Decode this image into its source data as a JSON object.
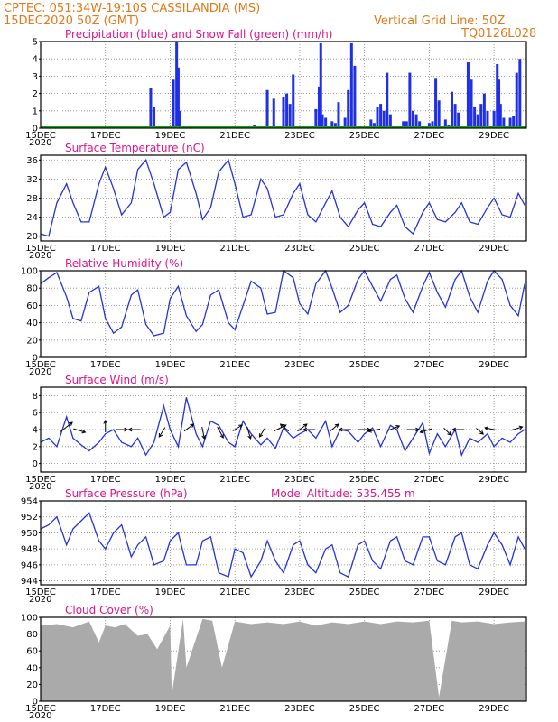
{
  "header": {
    "station": "CPTEC:   051:34W-19:10S   CASSILANDIA (MS)",
    "run": "15DEC2020 50Z (GMT)",
    "grid_note": "Vertical Grid Line: 50Z",
    "model_id": "TQ0126L028"
  },
  "x_labels": [
    "15DEC",
    "17DEC",
    "19DEC",
    "21DEC",
    "23DEC",
    "25DEC",
    "27DEC",
    "29DEC"
  ],
  "year_label": "2020",
  "colors": {
    "precip": "#1f2fe8",
    "snow": "#12a012",
    "line": "#2233dd",
    "cloud": "#aaaaaa",
    "grid": "#888888",
    "title": "#e0158a",
    "header": "#e07a1a"
  },
  "chart_data": [
    {
      "type": "bar",
      "title": "Precipitation (blue) and Snow Fall (green) (mm/h)",
      "ylim": [
        0,
        5
      ],
      "yticks": [
        0,
        1,
        2,
        3,
        4,
        5
      ],
      "x_days": [
        3.4,
        3.5,
        4.1,
        4.2,
        4.25,
        4.3,
        6.6,
        7.0,
        7.2,
        7.5,
        7.6,
        7.7,
        7.8,
        8.5,
        8.6,
        8.65,
        8.7,
        8.8,
        9.0,
        9.1,
        9.2,
        9.4,
        9.5,
        9.6,
        9.7,
        10.2,
        10.3,
        10.4,
        10.5,
        10.6,
        10.7,
        10.8,
        11.2,
        11.3,
        11.4,
        11.5,
        11.6,
        11.7,
        12.0,
        12.1,
        12.2,
        12.3,
        12.5,
        12.6,
        12.7,
        12.8,
        12.9,
        13.2,
        13.3,
        13.4,
        13.5,
        13.6,
        13.7,
        13.8,
        14.0,
        14.1,
        14.15,
        14.2,
        14.3,
        14.5,
        14.6,
        14.7,
        14.8
      ],
      "values": [
        2.3,
        1.2,
        2.8,
        5.0,
        3.5,
        1.0,
        0.2,
        2.2,
        1.7,
        1.8,
        2.0,
        1.4,
        3.1,
        1.1,
        2.4,
        4.9,
        0.8,
        0.6,
        0.4,
        0.3,
        1.5,
        0.6,
        2.2,
        4.9,
        3.6,
        0.5,
        0.3,
        1.2,
        1.4,
        1.0,
        3.2,
        0.8,
        0.4,
        0.4,
        3.2,
        1.0,
        0.8,
        0.4,
        0.3,
        0.4,
        2.9,
        1.6,
        0.5,
        0.2,
        2.1,
        1.4,
        0.9,
        3.8,
        2.8,
        1.2,
        0.8,
        1.4,
        2.0,
        1.0,
        1.0,
        3.7,
        2.8,
        1.4,
        0.6,
        0.6,
        0.7,
        3.2,
        4.0
      ]
    },
    {
      "type": "line",
      "title": "Surface Temperature (nC)",
      "ylim": [
        19,
        37
      ],
      "yticks": [
        20,
        24,
        28,
        32,
        36
      ],
      "x_days": [
        0.0,
        0.25,
        0.5,
        0.8,
        1.0,
        1.25,
        1.5,
        1.8,
        2.0,
        2.25,
        2.5,
        2.8,
        3.0,
        3.25,
        3.5,
        3.8,
        4.0,
        4.25,
        4.5,
        4.8,
        5.0,
        5.25,
        5.5,
        5.8,
        6.0,
        6.25,
        6.5,
        6.8,
        7.0,
        7.25,
        7.5,
        7.8,
        8.0,
        8.25,
        8.5,
        8.8,
        9.0,
        9.25,
        9.5,
        9.8,
        10.0,
        10.25,
        10.5,
        10.8,
        11.0,
        11.25,
        11.5,
        11.8,
        12.0,
        12.25,
        12.5,
        12.8,
        13.0,
        13.25,
        13.5,
        13.8,
        14.0,
        14.25,
        14.5,
        14.75,
        14.95
      ],
      "values": [
        20.5,
        20,
        27,
        31,
        27,
        23,
        23,
        31,
        34.5,
        30,
        24.5,
        27,
        34,
        36,
        31,
        24,
        25,
        34,
        35.5,
        29,
        23.5,
        26,
        33.5,
        36,
        31,
        24,
        24.5,
        32,
        30,
        24,
        24.5,
        29,
        31,
        24.5,
        23,
        27,
        29.5,
        24,
        22,
        25.5,
        27,
        22.5,
        22,
        25,
        26.5,
        22,
        20.5,
        25,
        27,
        23.5,
        23,
        25,
        27,
        23,
        22.5,
        26,
        28,
        24.5,
        24,
        29,
        26.5
      ]
    },
    {
      "type": "line",
      "title": "Relative Humidity (%)",
      "ylim": [
        0,
        100
      ],
      "yticks": [
        0,
        20,
        40,
        60,
        80,
        100
      ],
      "x_days": [
        0.0,
        0.25,
        0.5,
        0.8,
        1.0,
        1.25,
        1.5,
        1.8,
        2.0,
        2.25,
        2.5,
        2.8,
        3.0,
        3.25,
        3.5,
        3.8,
        4.0,
        4.25,
        4.5,
        4.8,
        5.0,
        5.25,
        5.5,
        5.8,
        6.0,
        6.25,
        6.5,
        6.8,
        7.0,
        7.25,
        7.5,
        7.8,
        8.0,
        8.25,
        8.5,
        8.8,
        9.0,
        9.25,
        9.5,
        9.8,
        10.0,
        10.25,
        10.5,
        10.8,
        11.0,
        11.25,
        11.5,
        11.8,
        12.0,
        12.25,
        12.5,
        12.8,
        13.0,
        13.25,
        13.5,
        13.8,
        14.0,
        14.25,
        14.5,
        14.75,
        14.95
      ],
      "values": [
        85,
        92,
        98,
        70,
        45,
        42,
        75,
        82,
        45,
        28,
        35,
        72,
        78,
        38,
        25,
        28,
        68,
        82,
        48,
        30,
        38,
        72,
        78,
        40,
        32,
        60,
        88,
        80,
        50,
        52,
        100,
        92,
        62,
        50,
        85,
        100,
        80,
        52,
        60,
        90,
        100,
        82,
        65,
        90,
        95,
        68,
        52,
        82,
        98,
        75,
        58,
        90,
        100,
        70,
        52,
        88,
        100,
        90,
        60,
        48,
        85
      ]
    },
    {
      "type": "line",
      "title": "Surface Wind (m/s)",
      "ylim": [
        -1,
        9
      ],
      "yticks": [
        0,
        2,
        4,
        6,
        8
      ],
      "x_days": [
        0.0,
        0.25,
        0.5,
        0.8,
        1.0,
        1.25,
        1.5,
        1.8,
        2.0,
        2.25,
        2.5,
        2.8,
        3.0,
        3.25,
        3.5,
        3.8,
        4.0,
        4.25,
        4.5,
        4.8,
        5.0,
        5.25,
        5.5,
        5.8,
        6.0,
        6.25,
        6.5,
        6.8,
        7.0,
        7.25,
        7.5,
        7.8,
        8.0,
        8.25,
        8.5,
        8.8,
        9.0,
        9.25,
        9.5,
        9.8,
        10.0,
        10.25,
        10.5,
        10.8,
        11.0,
        11.25,
        11.5,
        11.8,
        12.0,
        12.25,
        12.5,
        12.8,
        13.0,
        13.25,
        13.5,
        13.8,
        14.0,
        14.25,
        14.5,
        14.75,
        14.95
      ],
      "values": [
        2.5,
        3.0,
        2.0,
        5.5,
        3.0,
        2.2,
        1.5,
        2.5,
        3.5,
        4.0,
        2.5,
        2.0,
        3.0,
        1.0,
        2.5,
        6.8,
        4.0,
        2.0,
        7.8,
        3.5,
        2.0,
        5.0,
        4.5,
        2.5,
        2.0,
        5.0,
        3.5,
        2.2,
        3.0,
        1.8,
        4.2,
        3.0,
        3.5,
        4.0,
        3.0,
        5.0,
        2.0,
        4.0,
        3.8,
        2.5,
        3.5,
        4.2,
        2.0,
        4.5,
        4.0,
        1.5,
        3.0,
        4.8,
        1.2,
        3.5,
        2.0,
        4.0,
        1.0,
        3.0,
        2.5,
        3.5,
        2.0,
        3.0,
        2.5,
        3.5,
        4.0
      ]
    },
    {
      "type": "line",
      "title": "Surface Pressure (hPa)",
      "annotation": "Model Altitude:  535.455  m",
      "ylim": [
        943.5,
        954
      ],
      "yticks": [
        944,
        946,
        948,
        950,
        952,
        954
      ],
      "x_days": [
        0.0,
        0.25,
        0.5,
        0.8,
        1.0,
        1.25,
        1.5,
        1.8,
        2.0,
        2.25,
        2.5,
        2.8,
        3.0,
        3.25,
        3.5,
        3.8,
        4.0,
        4.25,
        4.5,
        4.8,
        5.0,
        5.25,
        5.5,
        5.8,
        6.0,
        6.25,
        6.5,
        6.8,
        7.0,
        7.25,
        7.5,
        7.8,
        8.0,
        8.25,
        8.5,
        8.8,
        9.0,
        9.25,
        9.5,
        9.8,
        10.0,
        10.25,
        10.5,
        10.8,
        11.0,
        11.25,
        11.5,
        11.8,
        12.0,
        12.25,
        12.5,
        12.8,
        13.0,
        13.25,
        13.5,
        13.8,
        14.0,
        14.25,
        14.5,
        14.75,
        14.95
      ],
      "values": [
        950.5,
        951.0,
        952.0,
        948.5,
        950.5,
        951.5,
        952.5,
        949.0,
        948.0,
        950.0,
        951.0,
        947.0,
        948.5,
        949.5,
        946.0,
        946.5,
        949.0,
        950.0,
        946.0,
        946.0,
        949.0,
        949.5,
        945.0,
        944.5,
        948.0,
        947.5,
        944.5,
        946.5,
        949.0,
        946.5,
        945.0,
        948.5,
        949.0,
        946.0,
        945.0,
        948.0,
        948.5,
        945.0,
        944.5,
        948.5,
        949.0,
        946.5,
        945.5,
        949.0,
        949.5,
        946.5,
        946.0,
        949.5,
        949.5,
        946.5,
        946.0,
        949.5,
        950.0,
        946.0,
        945.5,
        948.5,
        950.0,
        948.5,
        946.0,
        949.5,
        948.0
      ]
    },
    {
      "type": "area",
      "title": "Cloud Cover (%)",
      "ylim": [
        0,
        100
      ],
      "yticks": [
        0,
        20,
        40,
        60,
        80,
        100
      ],
      "x_days": [
        0.0,
        0.5,
        1.0,
        1.5,
        1.8,
        2.0,
        2.3,
        2.6,
        3.0,
        3.3,
        3.6,
        4.0,
        4.05,
        4.4,
        4.5,
        5.0,
        5.3,
        5.6,
        6.0,
        6.5,
        7.0,
        7.5,
        8.0,
        8.5,
        9.0,
        9.5,
        10.0,
        10.5,
        11.0,
        11.5,
        12.0,
        12.3,
        12.7,
        13.0,
        13.5,
        14.0,
        14.5,
        14.95
      ],
      "values": [
        90,
        92,
        88,
        95,
        70,
        90,
        88,
        92,
        78,
        80,
        62,
        90,
        8,
        98,
        40,
        98,
        96,
        40,
        95,
        92,
        94,
        92,
        95,
        90,
        94,
        92,
        95,
        92,
        95,
        94,
        96,
        5,
        96,
        94,
        95,
        92,
        94,
        95
      ]
    }
  ],
  "wind_vectors": [
    {
      "x": 0.7,
      "dx": 1,
      "dy": 0.8
    },
    {
      "x": 1.1,
      "dx": 1,
      "dy": -0.3
    },
    {
      "x": 2.0,
      "dx": 0,
      "dy": 1
    },
    {
      "x": 2.4,
      "dx": 1,
      "dy": 0
    },
    {
      "x": 3.0,
      "dx": -1,
      "dy": 0
    },
    {
      "x": 3.8,
      "dx": -0.5,
      "dy": -0.8
    },
    {
      "x": 4.5,
      "dx": 0.8,
      "dy": 0.6
    },
    {
      "x": 5.0,
      "dx": 0.2,
      "dy": -1
    },
    {
      "x": 5.5,
      "dx": 0.5,
      "dy": -0.9
    },
    {
      "x": 6.0,
      "dx": 0.8,
      "dy": 0.5
    },
    {
      "x": 6.4,
      "dx": 0.3,
      "dy": -1
    },
    {
      "x": 6.9,
      "dx": -0.5,
      "dy": -0.8
    },
    {
      "x": 7.3,
      "dx": 1,
      "dy": 0.5
    },
    {
      "x": 7.6,
      "dx": -0.7,
      "dy": 0.6
    },
    {
      "x": 8.0,
      "dx": 0.8,
      "dy": 0.6
    },
    {
      "x": 8.4,
      "dx": -1,
      "dy": 0
    },
    {
      "x": 9.0,
      "dx": 0.7,
      "dy": 0.6
    },
    {
      "x": 9.5,
      "dx": -1,
      "dy": 0
    },
    {
      "x": 9.9,
      "dx": 1,
      "dy": 0
    },
    {
      "x": 10.4,
      "dx": -1,
      "dy": -0.2
    },
    {
      "x": 10.8,
      "dx": 1,
      "dy": 0.4
    },
    {
      "x": 11.4,
      "dx": 1,
      "dy": 0
    },
    {
      "x": 12.0,
      "dx": -1,
      "dy": -0.3
    },
    {
      "x": 12.5,
      "dx": 0.6,
      "dy": -0.6
    },
    {
      "x": 13.0,
      "dx": -1,
      "dy": 0
    },
    {
      "x": 13.5,
      "dx": 0.6,
      "dy": -0.5
    },
    {
      "x": 14.0,
      "dx": -1,
      "dy": 0.2
    },
    {
      "x": 14.6,
      "dx": 1,
      "dy": 0.3
    }
  ]
}
